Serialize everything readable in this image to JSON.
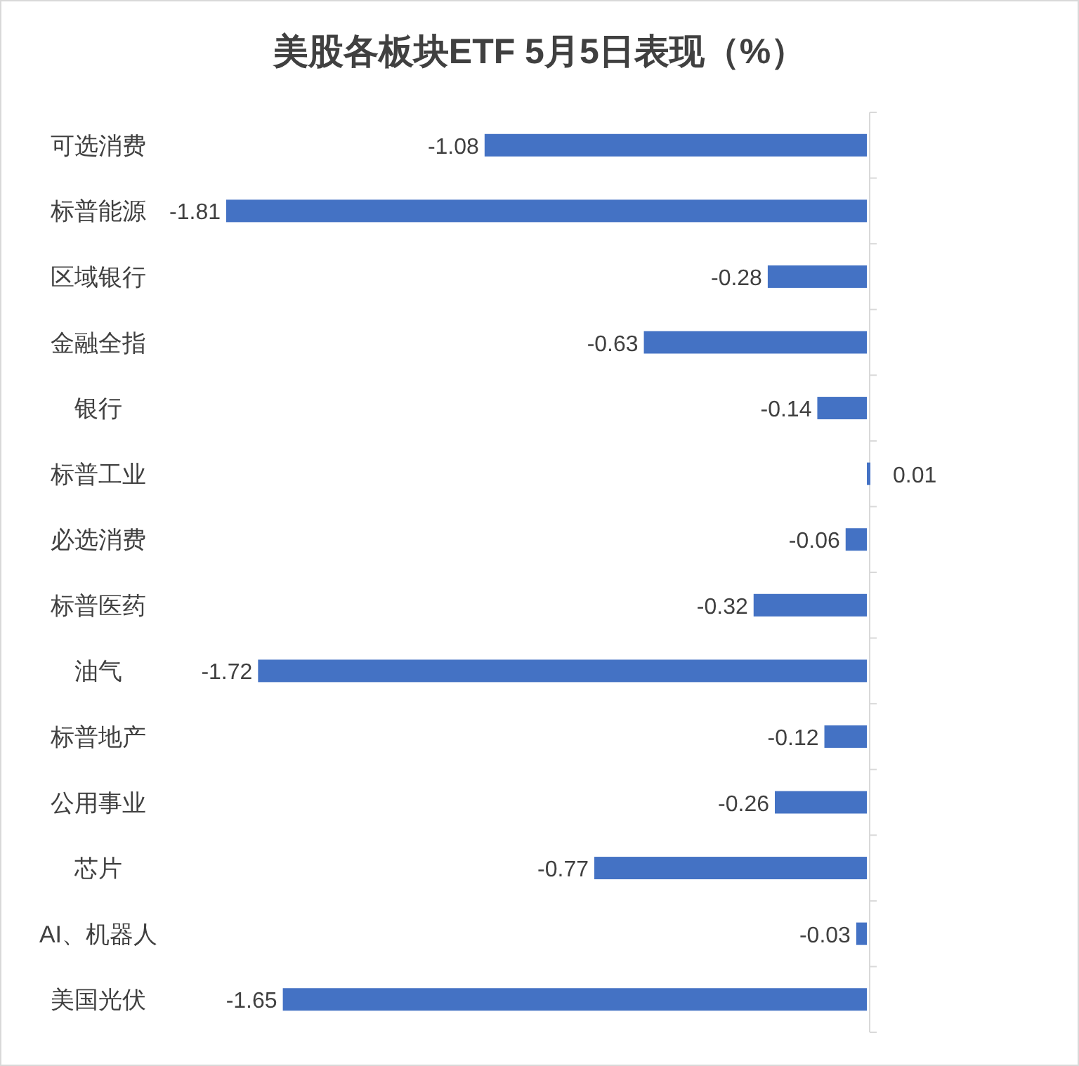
{
  "chart_data": {
    "type": "bar",
    "orientation": "horizontal",
    "title": "美股各板块ETF  5月5日表现（%）",
    "categories": [
      "可选消费",
      "标普能源",
      "区域银行",
      "金融全指",
      "银行",
      "标普工业",
      "必选消费",
      "标普医药",
      "油气",
      "标普地产",
      "公用事业",
      "芯片",
      "AI、机器人",
      "美国光伏"
    ],
    "values": [
      -1.08,
      -1.81,
      -0.28,
      -0.63,
      -0.14,
      0.01,
      -0.06,
      -0.32,
      -1.72,
      -0.12,
      -0.26,
      -0.77,
      -0.03,
      -1.65
    ],
    "color": "#4472c4",
    "data_labels": true
  }
}
